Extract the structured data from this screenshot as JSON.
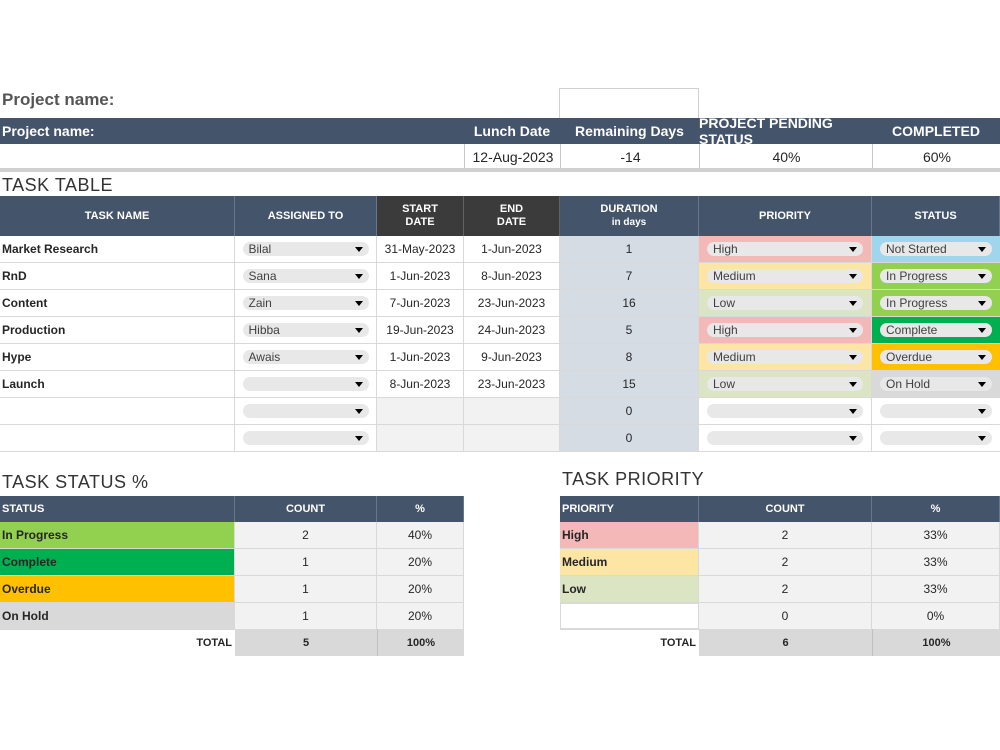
{
  "project": {
    "title": "Project name:",
    "header_label": "Project name:",
    "columns": [
      "Lunch Date",
      "Remaining Days",
      "PROJECT PENDING STATUS",
      "COMPLETED"
    ],
    "values": [
      "12-Aug-2023",
      "-14",
      "40%",
      "60%"
    ]
  },
  "task_table": {
    "title": "TASK TABLE",
    "headers": {
      "name": "TASK NAME",
      "assigned": "ASSIGNED TO",
      "start1": "START",
      "start2": "DATE",
      "end1": "END",
      "end2": "DATE",
      "dur1": "DURATION",
      "dur2": "in days",
      "priority": "PRIORITY",
      "status": "STATUS"
    },
    "rows": [
      {
        "name": "Market Research",
        "assigned": "Bilal",
        "start": "31-May-2023",
        "end": "1-Jun-2023",
        "duration": "1",
        "priority": "High",
        "status": "Not Started"
      },
      {
        "name": "RnD",
        "assigned": "Sana",
        "start": "1-Jun-2023",
        "end": "8-Jun-2023",
        "duration": "7",
        "priority": "Medium",
        "status": "In Progress"
      },
      {
        "name": "Content",
        "assigned": "Zain",
        "start": "7-Jun-2023",
        "end": "23-Jun-2023",
        "duration": "16",
        "priority": "Low",
        "status": "In Progress"
      },
      {
        "name": "Production",
        "assigned": "Hibba",
        "start": "19-Jun-2023",
        "end": "24-Jun-2023",
        "duration": "5",
        "priority": "High",
        "status": "Complete"
      },
      {
        "name": "Hype",
        "assigned": "Awais",
        "start": "1-Jun-2023",
        "end": "9-Jun-2023",
        "duration": "8",
        "priority": "Medium",
        "status": "Overdue"
      },
      {
        "name": "Launch",
        "assigned": "",
        "start": "8-Jun-2023",
        "end": "23-Jun-2023",
        "duration": "15",
        "priority": "Low",
        "status": "On Hold"
      },
      {
        "name": "",
        "assigned": "",
        "start": "",
        "end": "",
        "duration": "0",
        "priority": "",
        "status": ""
      },
      {
        "name": "",
        "assigned": "",
        "start": "",
        "end": "",
        "duration": "0",
        "priority": "",
        "status": ""
      }
    ]
  },
  "colors": {
    "header": "#44546a",
    "priority": {
      "High": "#f4b8b8",
      "Medium": "#fde5a3",
      "Low": "#dbe5c4"
    },
    "status": {
      "Not Started": "#9fd6ee",
      "In Progress": "#92d050",
      "Complete": "#00b050",
      "Overdue": "#ffc000",
      "On Hold": "#d9d9d9"
    }
  },
  "status_summary": {
    "title": "TASK STATUS %",
    "headers": [
      "STATUS",
      "COUNT",
      "%"
    ],
    "rows": [
      {
        "label": "In Progress",
        "count": "2",
        "pct": "40%"
      },
      {
        "label": "Complete",
        "count": "1",
        "pct": "20%"
      },
      {
        "label": "Overdue",
        "count": "1",
        "pct": "20%"
      },
      {
        "label": "On Hold",
        "count": "1",
        "pct": "20%"
      }
    ],
    "total_label": "TOTAL",
    "total_count": "5",
    "total_pct": "100%"
  },
  "priority_summary": {
    "title": "TASK PRIORITY",
    "headers": [
      "PRIORITY",
      "COUNT",
      "%"
    ],
    "rows": [
      {
        "label": "High",
        "count": "2",
        "pct": "33%"
      },
      {
        "label": "Medium",
        "count": "2",
        "pct": "33%"
      },
      {
        "label": "Low",
        "count": "2",
        "pct": "33%"
      },
      {
        "label": "",
        "count": "0",
        "pct": "0%"
      }
    ],
    "total_label": "TOTAL",
    "total_count": "6",
    "total_pct": "100%"
  }
}
